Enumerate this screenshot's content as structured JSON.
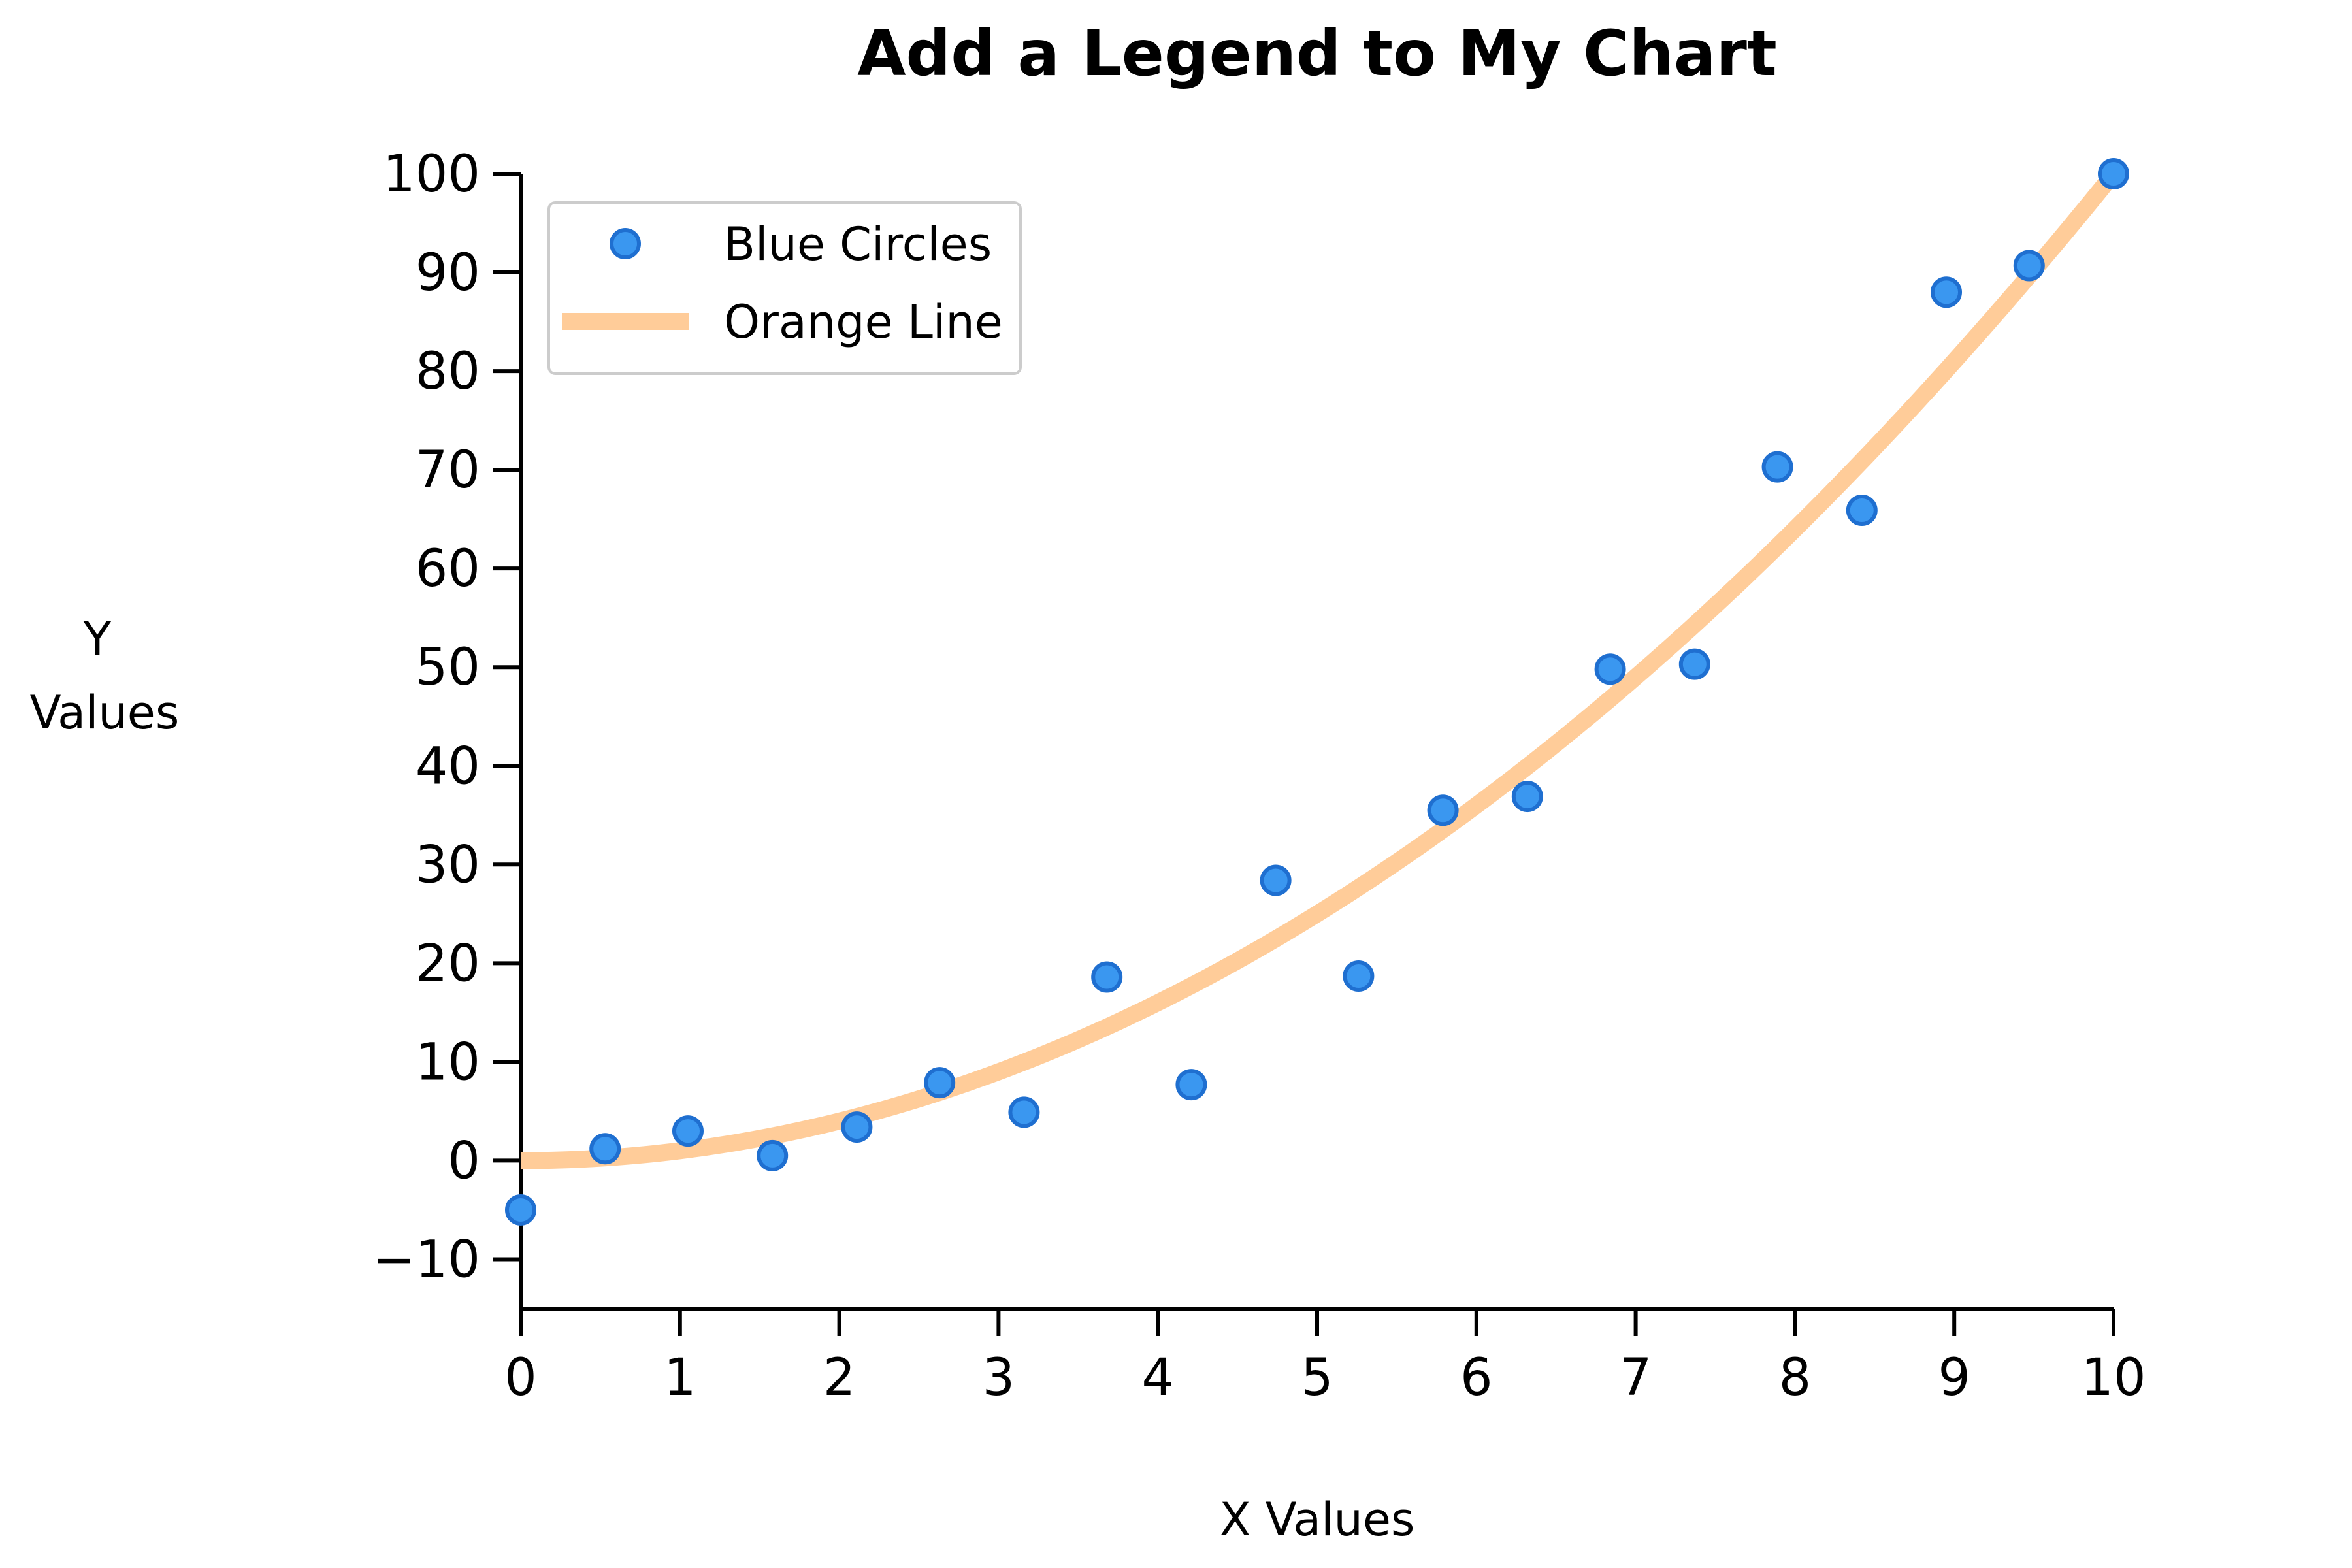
{
  "chart_data": {
    "type": "scatter",
    "title": "Add a Legend to My Chart",
    "xlabel": "X Values",
    "ylabel_lines": [
      "Y",
      "Values"
    ],
    "xlim": [
      0,
      10
    ],
    "ylim": [
      -15,
      100
    ],
    "x_ticks": [
      0,
      1,
      2,
      3,
      4,
      5,
      6,
      7,
      8,
      9,
      10
    ],
    "y_ticks": [
      -10,
      0,
      10,
      20,
      30,
      40,
      50,
      60,
      70,
      80,
      90,
      100
    ],
    "grid": false,
    "legend_position": "top-left",
    "series": [
      {
        "name": "Blue Circles",
        "kind": "scatter",
        "color": "#3a97f0",
        "edge_color": "#1f6fd0",
        "x": [
          0,
          0.53,
          1.05,
          1.58,
          2.11,
          2.63,
          3.16,
          3.68,
          4.21,
          4.74,
          5.26,
          5.79,
          6.32,
          6.84,
          7.37,
          7.89,
          8.42,
          8.95,
          9.47,
          10
        ],
        "y": [
          -5,
          1.2,
          3,
          0.5,
          3.4,
          7.9,
          4.9,
          18.6,
          7.7,
          28.4,
          18.7,
          35.5,
          36.9,
          49.8,
          50.3,
          70.3,
          65.9,
          88.0,
          90.7,
          100.0
        ]
      },
      {
        "name": "Orange Line",
        "kind": "line",
        "color": "#ffcc99",
        "function": "y = x^2",
        "x_range": [
          0,
          10
        ]
      }
    ]
  }
}
